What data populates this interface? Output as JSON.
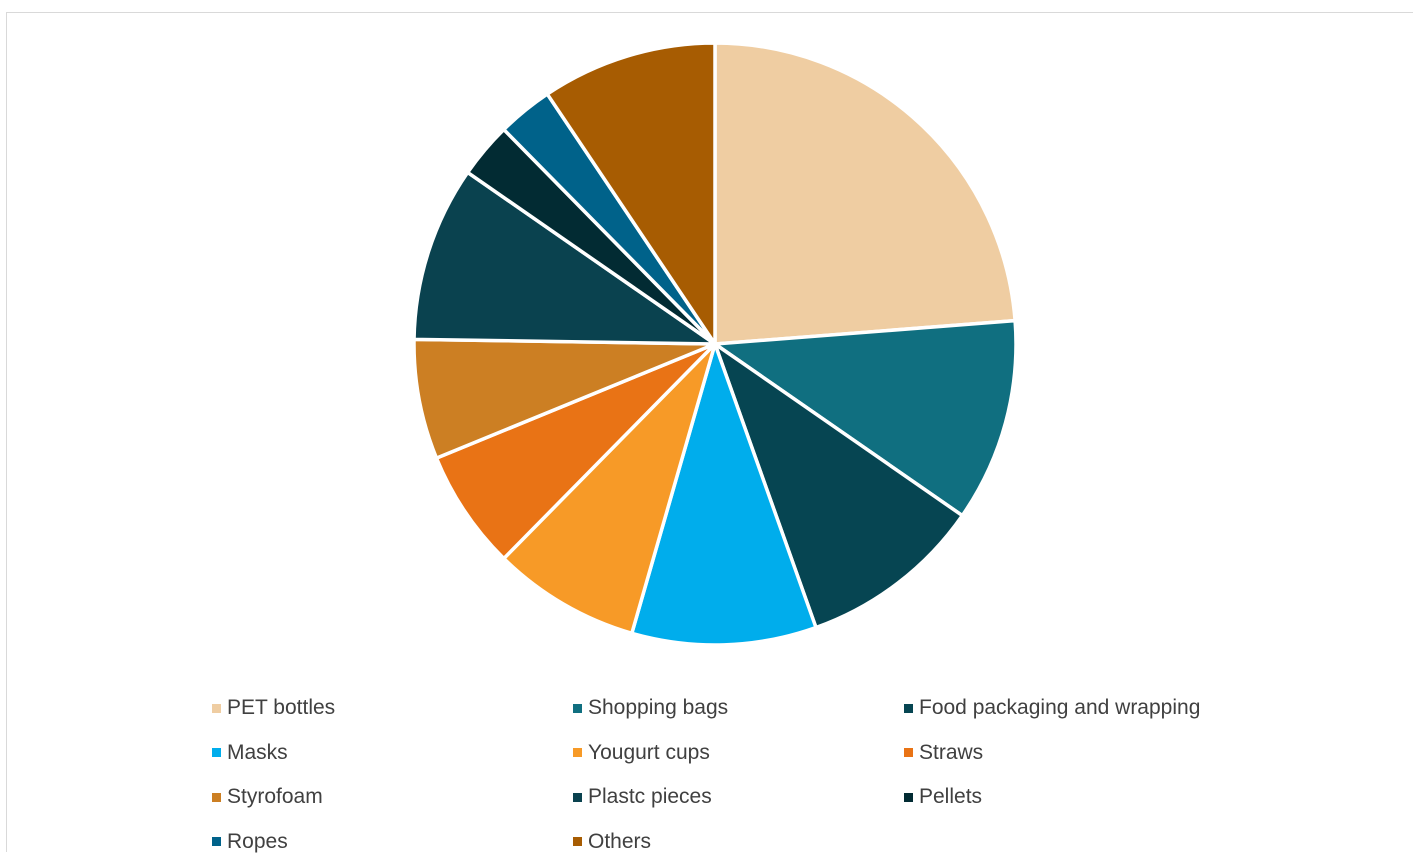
{
  "chart_data": {
    "type": "pie",
    "title": "",
    "series": [
      {
        "name": "",
        "slices": [
          {
            "label": "PET bottles",
            "value": 24,
            "color": "#EFCDA2"
          },
          {
            "label": "Shopping bags",
            "value": 11,
            "color": "#106F80"
          },
          {
            "label": "Food packaging and wrapping",
            "value": 10,
            "color": "#064552"
          },
          {
            "label": "Masks",
            "value": 10,
            "color": "#00ADEC"
          },
          {
            "label": "Yougurt cups",
            "value": 8,
            "color": "#F79A27"
          },
          {
            "label": "Straws",
            "value": 6.5,
            "color": "#E97315"
          },
          {
            "label": "Styrofoam",
            "value": 6.5,
            "color": "#CC7F23"
          },
          {
            "label": "Plastc pieces",
            "value": 9.5,
            "color": "#0A424F"
          },
          {
            "label": "Pellets",
            "value": 3,
            "color": "#022B33"
          },
          {
            "label": "Ropes",
            "value": 3,
            "color": "#00628A"
          },
          {
            "label": "Others",
            "value": 9.5,
            "color": "#A75C02"
          }
        ]
      }
    ],
    "legend_placement": "bottom"
  }
}
